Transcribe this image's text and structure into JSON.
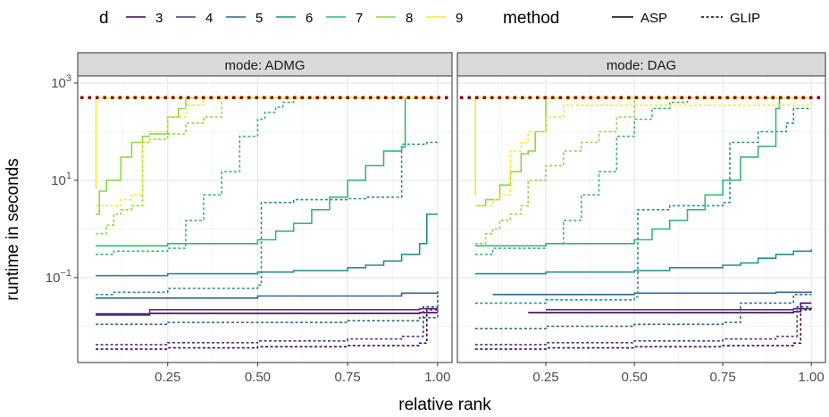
{
  "chart_data": {
    "type": "line",
    "xlabel": "relative rank",
    "ylabel": "runtime in seconds",
    "x_ticks": [
      "0.25",
      "0.50",
      "0.75",
      "1.00"
    ],
    "x_tick_values": [
      0.25,
      0.5,
      0.75,
      1.0
    ],
    "xlim": [
      0.0,
      1.04
    ],
    "y_scale": "log10",
    "ylim": [
      0.0018,
      1400
    ],
    "y_ticks": [
      {
        "value": 0.1,
        "base": "10",
        "exp": "−1"
      },
      {
        "value": 10,
        "base": "10",
        "exp": "1"
      },
      {
        "value": 1000,
        "base": "10",
        "exp": "3"
      }
    ],
    "timeout_seconds": 500,
    "timeout_color": "#8B0000",
    "legend": {
      "placement": "top",
      "d_title": "d",
      "method_title": "method",
      "d_entries": [
        {
          "label": "3",
          "color": "#440154"
        },
        {
          "label": "4",
          "color": "#443A83"
        },
        {
          "label": "5",
          "color": "#31688E"
        },
        {
          "label": "6",
          "color": "#21908C"
        },
        {
          "label": "7",
          "color": "#35B779"
        },
        {
          "label": "8",
          "color": "#8FD744"
        },
        {
          "label": "9",
          "color": "#FDE725"
        }
      ],
      "method_entries": [
        {
          "label": "ASP",
          "dash": "solid"
        },
        {
          "label": "GLIP",
          "dash": "dashed"
        }
      ]
    },
    "panels": [
      {
        "strip": "mode: ADMG",
        "series": [
          {
            "d": "3",
            "method": "ASP",
            "color": "#440154",
            "dash": "solid",
            "x": [
              0.05,
              0.2,
              0.95,
              1.0
            ],
            "y": [
              0.018,
              0.0185,
              0.019,
              0.019
            ]
          },
          {
            "d": "3",
            "method": "GLIP",
            "color": "#440154",
            "dash": "dashed",
            "x": [
              0.05,
              0.25,
              0.5,
              0.75,
              0.95,
              0.97,
              1.0
            ],
            "y": [
              0.0034,
              0.0036,
              0.0038,
              0.004,
              0.0045,
              0.022,
              0.022
            ]
          },
          {
            "d": "4",
            "method": "ASP",
            "color": "#443A83",
            "dash": "solid",
            "x": [
              0.05,
              0.12,
              0.2,
              0.95,
              1.0
            ],
            "y": [
              0.017,
              0.017,
              0.022,
              0.023,
              0.024
            ]
          },
          {
            "d": "4",
            "method": "GLIP",
            "color": "#443A83",
            "dash": "dashed",
            "x": [
              0.05,
              0.25,
              0.5,
              0.75,
              0.9,
              0.96,
              1.0
            ],
            "y": [
              0.0042,
              0.0046,
              0.005,
              0.0055,
              0.0062,
              0.025,
              0.025
            ]
          },
          {
            "d": "5",
            "method": "ASP",
            "color": "#31688E",
            "dash": "solid",
            "x": [
              0.05,
              0.5,
              0.9,
              1.0
            ],
            "y": [
              0.038,
              0.042,
              0.048,
              0.052
            ]
          },
          {
            "d": "5",
            "method": "GLIP",
            "color": "#31688E",
            "dash": "dashed",
            "x": [
              0.05,
              0.25,
              0.5,
              0.75,
              0.95,
              1.0
            ],
            "y": [
              0.011,
              0.012,
              0.012,
              0.013,
              0.015,
              0.052
            ]
          },
          {
            "d": "6",
            "method": "ASP",
            "color": "#21908C",
            "dash": "solid",
            "x": [
              0.05,
              0.25,
              0.5,
              0.6,
              0.75,
              0.8,
              0.85,
              0.9,
              0.95,
              0.97,
              1.0
            ],
            "y": [
              0.11,
              0.12,
              0.13,
              0.14,
              0.16,
              0.18,
              0.22,
              0.3,
              0.5,
              2.0,
              2.0
            ]
          },
          {
            "d": "6",
            "method": "GLIP",
            "color": "#21908C",
            "dash": "dashed",
            "x": [
              0.05,
              0.1,
              0.25,
              0.5,
              0.51,
              0.6,
              0.75,
              0.8,
              0.9,
              0.97,
              1.0
            ],
            "y": [
              0.045,
              0.05,
              0.06,
              0.07,
              3.5,
              4.0,
              4.2,
              4.5,
              55,
              60,
              60
            ]
          },
          {
            "d": "7",
            "method": "ASP",
            "color": "#35B779",
            "dash": "solid",
            "x": [
              0.05,
              0.25,
              0.5,
              0.55,
              0.6,
              0.65,
              0.7,
              0.75,
              0.8,
              0.85,
              0.9,
              0.91,
              1.0
            ],
            "y": [
              0.45,
              0.5,
              0.6,
              0.9,
              1.3,
              2.5,
              4.5,
              10,
              20,
              40,
              48,
              500,
              500
            ]
          },
          {
            "d": "7",
            "method": "GLIP",
            "color": "#35B779",
            "dash": "dashed",
            "x": [
              0.05,
              0.1,
              0.25,
              0.3,
              0.35,
              0.4,
              0.45,
              0.5,
              0.52,
              0.55,
              0.57,
              0.6,
              0.65,
              0.7,
              1.0
            ],
            "y": [
              0.3,
              0.35,
              0.4,
              1.5,
              5,
              15,
              80,
              180,
              250,
              320,
              400,
              500,
              500,
              500,
              500
            ]
          },
          {
            "d": "8",
            "method": "ASP",
            "color": "#8FD744",
            "dash": "solid",
            "x": [
              0.05,
              0.06,
              0.08,
              0.12,
              0.15,
              0.18,
              0.2,
              0.25,
              0.28,
              0.3,
              1.0
            ],
            "y": [
              2,
              6,
              10,
              30,
              60,
              80,
              90,
              200,
              300,
              500,
              500
            ]
          },
          {
            "d": "8",
            "method": "GLIP",
            "color": "#8FD744",
            "dash": "dashed",
            "x": [
              0.05,
              0.08,
              0.1,
              0.12,
              0.15,
              0.18,
              0.2,
              0.25,
              0.3,
              0.35,
              0.4,
              1.0
            ],
            "y": [
              0.8,
              1.2,
              2.0,
              2.5,
              3,
              60,
              70,
              90,
              150,
              200,
              500,
              500
            ]
          },
          {
            "d": "9",
            "method": "ASP",
            "color": "#FDE725",
            "dash": "solid",
            "x": [
              0.05,
              0.051,
              1.0
            ],
            "y": [
              7,
              500,
              500
            ]
          },
          {
            "d": "9",
            "method": "GLIP",
            "color": "#FDE725",
            "dash": "dashed",
            "x": [
              0.05,
              0.12,
              0.15,
              0.18,
              0.2,
              0.25,
              0.3,
              0.35,
              1.0
            ],
            "y": [
              3.0,
              4.0,
              5.0,
              60,
              100,
              200,
              350,
              500,
              500
            ]
          }
        ]
      },
      {
        "strip": "mode: DAG",
        "series": [
          {
            "d": "3",
            "method": "ASP",
            "color": "#440154",
            "dash": "solid",
            "x": [
              0.2,
              0.95,
              0.97,
              1.0
            ],
            "y": [
              0.019,
              0.02,
              0.03,
              0.03
            ]
          },
          {
            "d": "3",
            "method": "GLIP",
            "color": "#440154",
            "dash": "dashed",
            "x": [
              0.05,
              0.25,
              0.5,
              0.75,
              0.95,
              0.97,
              1.0
            ],
            "y": [
              0.0034,
              0.0036,
              0.0038,
              0.004,
              0.0045,
              0.022,
              0.022
            ]
          },
          {
            "d": "4",
            "method": "ASP",
            "color": "#443A83",
            "dash": "solid",
            "x": [
              0.25,
              0.95,
              1.0
            ],
            "y": [
              0.022,
              0.023,
              0.024
            ]
          },
          {
            "d": "4",
            "method": "GLIP",
            "color": "#443A83",
            "dash": "dashed",
            "x": [
              0.05,
              0.25,
              0.5,
              0.75,
              0.9,
              0.96,
              1.0
            ],
            "y": [
              0.0042,
              0.0046,
              0.005,
              0.0055,
              0.0062,
              0.025,
              0.025
            ]
          },
          {
            "d": "5",
            "method": "ASP",
            "color": "#31688E",
            "dash": "solid",
            "x": [
              0.1,
              0.5,
              0.9,
              1.0
            ],
            "y": [
              0.045,
              0.048,
              0.05,
              0.052
            ]
          },
          {
            "d": "5",
            "method": "GLIP",
            "color": "#31688E",
            "dash": "dashed",
            "x": [
              0.05,
              0.25,
              0.5,
              0.75,
              0.8,
              0.95,
              1.0
            ],
            "y": [
              0.009,
              0.01,
              0.011,
              0.012,
              0.03,
              0.045,
              0.045
            ]
          },
          {
            "d": "6",
            "method": "ASP",
            "color": "#21908C",
            "dash": "solid",
            "x": [
              0.05,
              0.25,
              0.5,
              0.6,
              0.75,
              0.8,
              0.85,
              0.9,
              0.95,
              1.0
            ],
            "y": [
              0.12,
              0.13,
              0.14,
              0.16,
              0.18,
              0.2,
              0.25,
              0.3,
              0.35,
              0.38
            ]
          },
          {
            "d": "6",
            "method": "GLIP",
            "color": "#21908C",
            "dash": "dashed",
            "x": [
              0.05,
              0.25,
              0.5,
              0.51,
              0.6,
              0.75,
              0.77,
              0.85,
              0.93,
              0.95,
              1.0
            ],
            "y": [
              0.03,
              0.035,
              0.04,
              2.5,
              3.0,
              3.5,
              60,
              100,
              150,
              300,
              300
            ]
          },
          {
            "d": "7",
            "method": "ASP",
            "color": "#35B779",
            "dash": "solid",
            "x": [
              0.05,
              0.25,
              0.5,
              0.55,
              0.6,
              0.65,
              0.7,
              0.75,
              0.8,
              0.85,
              0.9,
              0.91,
              1.0
            ],
            "y": [
              0.45,
              0.5,
              0.6,
              1.0,
              1.5,
              2.5,
              5,
              10,
              30,
              50,
              300,
              500,
              500
            ]
          },
          {
            "d": "7",
            "method": "GLIP",
            "color": "#35B779",
            "dash": "dashed",
            "x": [
              0.05,
              0.1,
              0.25,
              0.3,
              0.35,
              0.4,
              0.45,
              0.5,
              0.55,
              0.6,
              0.65,
              0.7,
              1.0
            ],
            "y": [
              0.3,
              0.4,
              0.5,
              1.5,
              5,
              15,
              80,
              180,
              300,
              400,
              500,
              500,
              500
            ]
          },
          {
            "d": "8",
            "method": "ASP",
            "color": "#8FD744",
            "dash": "solid",
            "x": [
              0.05,
              0.08,
              0.12,
              0.15,
              0.18,
              0.2,
              0.22,
              0.25,
              1.0
            ],
            "y": [
              3,
              4,
              8,
              15,
              35,
              40,
              100,
              500,
              500
            ]
          },
          {
            "d": "8",
            "method": "GLIP",
            "color": "#8FD744",
            "dash": "dashed",
            "x": [
              0.05,
              0.08,
              0.1,
              0.12,
              0.15,
              0.18,
              0.2,
              0.25,
              0.3,
              0.35,
              0.4,
              0.45,
              0.5,
              1.0
            ],
            "y": [
              0.5,
              0.8,
              1.0,
              1.5,
              2.0,
              3,
              10,
              20,
              40,
              60,
              100,
              200,
              500,
              500
            ]
          },
          {
            "d": "9",
            "method": "ASP",
            "color": "#FDE725",
            "dash": "solid",
            "x": [
              0.05,
              0.051,
              1.0
            ],
            "y": [
              5,
              500,
              500
            ]
          },
          {
            "d": "9",
            "method": "GLIP",
            "color": "#FDE725",
            "dash": "dashed",
            "x": [
              0.05,
              0.1,
              0.12,
              0.15,
              0.18,
              0.2,
              0.25,
              0.3,
              1.0
            ],
            "y": [
              3,
              4,
              5,
              40,
              60,
              100,
              200,
              350,
              500
            ]
          }
        ]
      }
    ]
  }
}
